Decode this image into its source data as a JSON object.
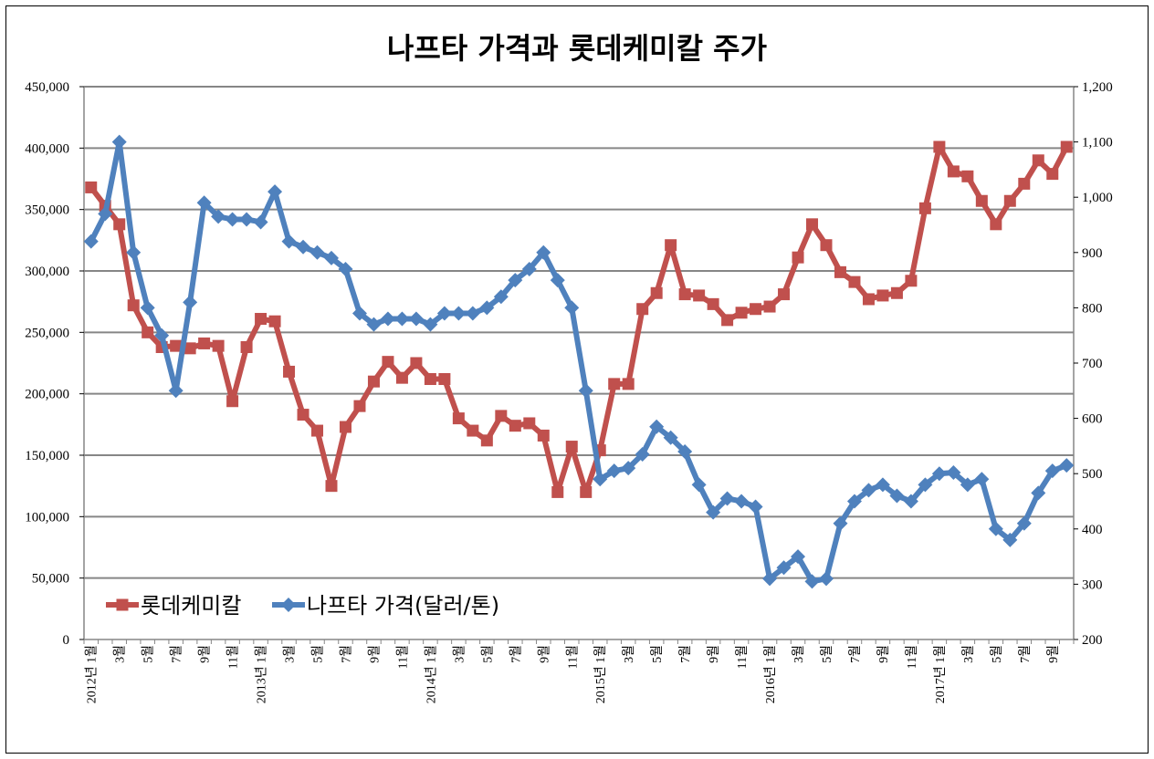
{
  "chart_data": {
    "type": "line",
    "title": "나프타 가격과 롯데케미칼 주가",
    "xlabel": "",
    "ylabel": "",
    "y_left": {
      "min": 0,
      "max": 450000,
      "step": 50000,
      "tick_labels": [
        "0",
        "50,000",
        "100,000",
        "150,000",
        "200,000",
        "250,000",
        "300,000",
        "350,000",
        "400,000",
        "450,000"
      ]
    },
    "y_right": {
      "min": 200,
      "max": 1200,
      "step": 100,
      "tick_labels": [
        "200",
        "300",
        "400",
        "500",
        "600",
        "700",
        "800",
        "900",
        "1,000",
        "1,100",
        "1,200"
      ]
    },
    "grid": true,
    "legend_position": "bottom-left",
    "x_tick_labels": [
      "2012년 1월",
      "3월",
      "5월",
      "7월",
      "9월",
      "11월",
      "2013년 1월",
      "3월",
      "5월",
      "7월",
      "9월",
      "11월",
      "2014년 1월",
      "3월",
      "5월",
      "7월",
      "9월",
      "11월",
      "2015년 1월",
      "3월",
      "5월",
      "7월",
      "9월",
      "11월",
      "2016년 1월",
      "3월",
      "5월",
      "7월",
      "9월",
      "11월",
      "2017년 1월",
      "3월",
      "5월",
      "7월",
      "9월"
    ],
    "series": [
      {
        "name": "롯데케미칼",
        "axis": "left",
        "color": "#c0504d",
        "marker": "square",
        "values": [
          368000,
          353000,
          338000,
          272000,
          250000,
          238000,
          239000,
          237000,
          241000,
          239000,
          194000,
          238000,
          261000,
          259000,
          218000,
          183000,
          170000,
          125000,
          173000,
          190000,
          210000,
          226000,
          213000,
          225000,
          212000,
          212000,
          180000,
          170000,
          162000,
          182000,
          174000,
          176000,
          166000,
          120000,
          157000,
          120000,
          154000,
          208000,
          208000,
          269000,
          282000,
          321000,
          281000,
          280000,
          273000,
          260000,
          266000,
          269000,
          271000,
          281000,
          311000,
          338000,
          321000,
          299000,
          291000,
          277000,
          280000,
          282000,
          292000,
          351000,
          401000,
          381000,
          377000,
          357000,
          338000,
          357000,
          371000,
          390000,
          379000,
          401000
        ]
      },
      {
        "name": "나프타 가격(달러/톤)",
        "axis": "right",
        "color": "#4f81bd",
        "marker": "diamond",
        "values": [
          920,
          970,
          1100,
          900,
          800,
          750,
          650,
          810,
          990,
          965,
          960,
          960,
          955,
          1010,
          920,
          910,
          900,
          890,
          870,
          790,
          770,
          780,
          780,
          780,
          770,
          790,
          790,
          790,
          800,
          820,
          850,
          870,
          900,
          850,
          800,
          650,
          490,
          505,
          510,
          535,
          585,
          565,
          540,
          480,
          430,
          455,
          450,
          440,
          310,
          330,
          350,
          305,
          310,
          410,
          450,
          470,
          480,
          460,
          450,
          480,
          500,
          502,
          480,
          490,
          400,
          380,
          410,
          465,
          505,
          515
        ]
      }
    ]
  }
}
